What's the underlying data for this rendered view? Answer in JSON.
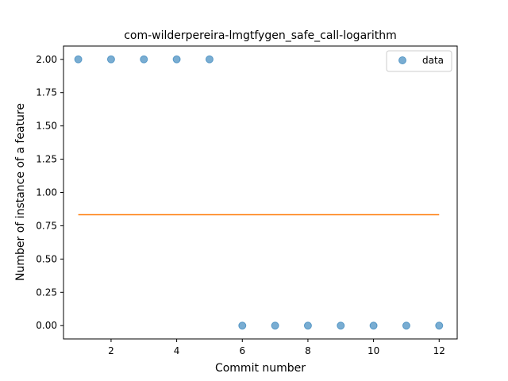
{
  "chart_data": {
    "type": "scatter",
    "title": "com-wilderpereira-lmgtfygen_safe_call-logarithm",
    "xlabel": "Commit number",
    "ylabel": "Number of instance of a feature",
    "xlim": [
      0.55,
      12.55
    ],
    "ylim": [
      -0.1,
      2.1
    ],
    "x_ticks": [
      2,
      4,
      6,
      8,
      10,
      12
    ],
    "y_ticks": [
      0.0,
      0.25,
      0.5,
      0.75,
      1.0,
      1.25,
      1.5,
      1.75,
      2.0
    ],
    "x_tick_labels": [
      "2",
      "4",
      "6",
      "8",
      "10",
      "12"
    ],
    "y_tick_labels": [
      "0.00",
      "0.25",
      "0.50",
      "0.75",
      "1.00",
      "1.25",
      "1.50",
      "1.75",
      "2.00"
    ],
    "grid": false,
    "legend_position": "top-right",
    "series": [
      {
        "name": "data",
        "type": "scatter",
        "color": "#1f77b4",
        "x": [
          1,
          2,
          3,
          4,
          5,
          6,
          7,
          8,
          9,
          10,
          11,
          12
        ],
        "y": [
          2,
          2,
          2,
          2,
          2,
          0,
          0,
          0,
          0,
          0,
          0,
          0
        ]
      },
      {
        "type": "line",
        "color": "#ff7f0e",
        "x": [
          1,
          12
        ],
        "y": [
          0.833,
          0.833
        ]
      }
    ]
  }
}
